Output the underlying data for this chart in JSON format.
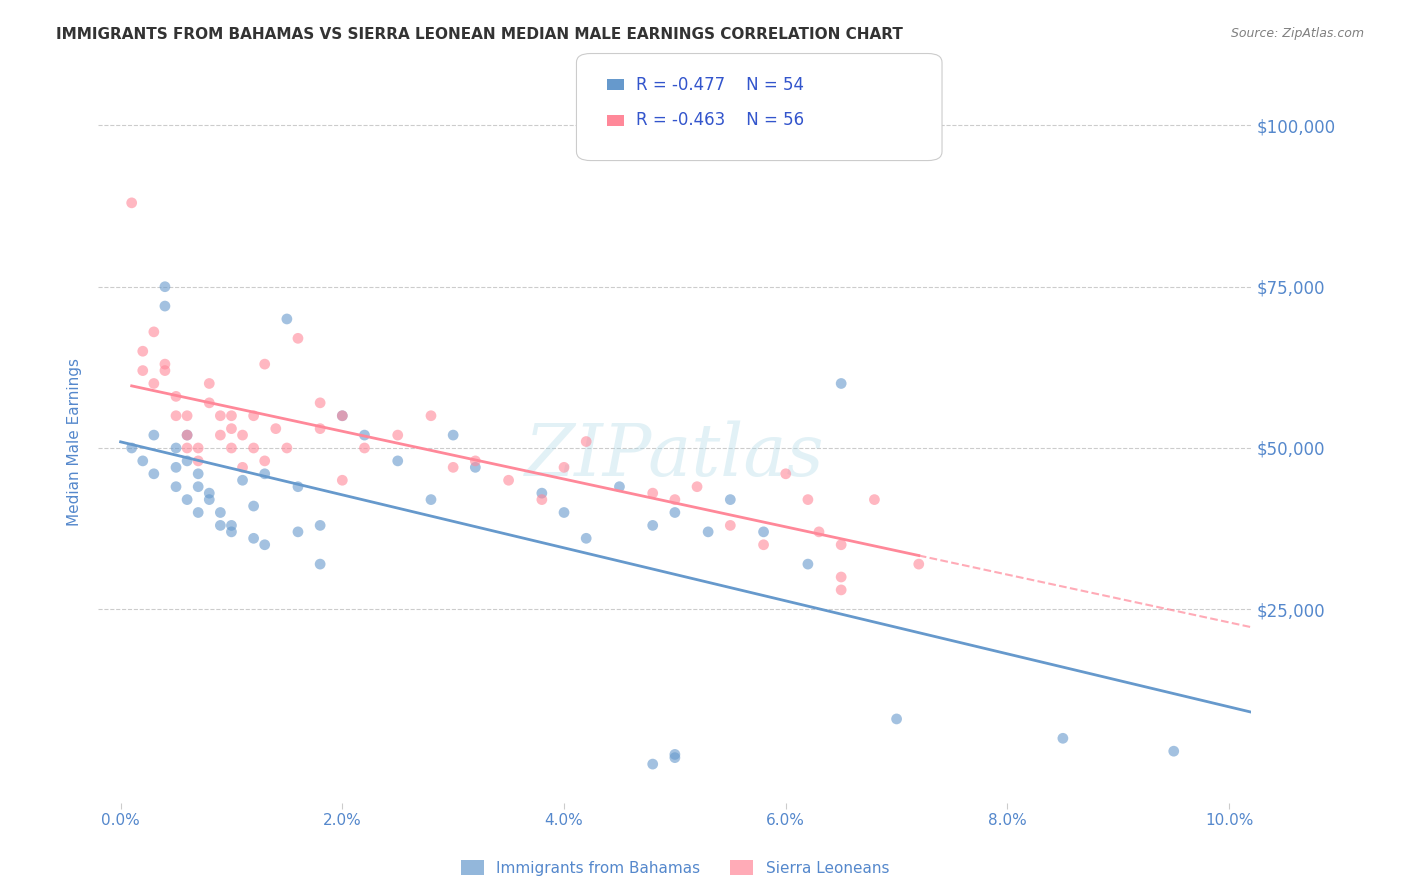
{
  "title": "IMMIGRANTS FROM BAHAMAS VS SIERRA LEONEAN MEDIAN MALE EARNINGS CORRELATION CHART",
  "source": "Source: ZipAtlas.com",
  "xlabel": "",
  "ylabel": "Median Male Earnings",
  "watermark": "ZIPatlas",
  "legend_labels": [
    "Immigrants from Bahamas",
    "Sierra Leoneans"
  ],
  "r_bahamas": -0.477,
  "n_bahamas": 54,
  "r_sierra": -0.463,
  "n_sierra": 56,
  "blue_color": "#6699CC",
  "pink_color": "#FF8899",
  "blue_light": "#AABBDD",
  "pink_light": "#FFAABB",
  "ytick_labels": [
    "$25,000",
    "$50,000",
    "$75,000",
    "$100,000"
  ],
  "ytick_values": [
    25000,
    50000,
    75000,
    100000
  ],
  "xlim": [
    -0.002,
    0.102
  ],
  "ylim": [
    -5000,
    107000
  ],
  "background": "#FFFFFF",
  "grid_color": "#CCCCCC",
  "title_color": "#333333",
  "axis_label_color": "#5588CC",
  "bahamas_x": [
    0.001,
    0.002,
    0.003,
    0.003,
    0.004,
    0.004,
    0.005,
    0.005,
    0.005,
    0.006,
    0.006,
    0.006,
    0.007,
    0.007,
    0.007,
    0.008,
    0.008,
    0.009,
    0.009,
    0.01,
    0.01,
    0.011,
    0.012,
    0.012,
    0.013,
    0.013,
    0.015,
    0.016,
    0.016,
    0.018,
    0.018,
    0.02,
    0.022,
    0.025,
    0.028,
    0.03,
    0.032,
    0.038,
    0.04,
    0.042,
    0.045,
    0.048,
    0.05,
    0.053,
    0.055,
    0.058,
    0.062,
    0.065,
    0.048,
    0.05,
    0.05,
    0.07,
    0.085,
    0.095
  ],
  "bahamas_y": [
    50000,
    48000,
    52000,
    46000,
    75000,
    72000,
    50000,
    47000,
    44000,
    48000,
    52000,
    42000,
    46000,
    44000,
    40000,
    43000,
    42000,
    38000,
    40000,
    38000,
    37000,
    45000,
    41000,
    36000,
    46000,
    35000,
    70000,
    37000,
    44000,
    38000,
    32000,
    55000,
    52000,
    48000,
    42000,
    52000,
    47000,
    43000,
    40000,
    36000,
    44000,
    38000,
    40000,
    37000,
    42000,
    37000,
    32000,
    60000,
    1000,
    2000,
    2500,
    8000,
    5000,
    3000
  ],
  "sierra_x": [
    0.001,
    0.002,
    0.002,
    0.003,
    0.003,
    0.004,
    0.004,
    0.005,
    0.005,
    0.006,
    0.006,
    0.006,
    0.007,
    0.007,
    0.008,
    0.008,
    0.009,
    0.009,
    0.01,
    0.01,
    0.01,
    0.011,
    0.011,
    0.012,
    0.012,
    0.013,
    0.013,
    0.014,
    0.015,
    0.016,
    0.018,
    0.018,
    0.02,
    0.02,
    0.022,
    0.025,
    0.028,
    0.03,
    0.032,
    0.035,
    0.038,
    0.04,
    0.042,
    0.048,
    0.05,
    0.052,
    0.055,
    0.06,
    0.062,
    0.065,
    0.058,
    0.063,
    0.065,
    0.072,
    0.065,
    0.068
  ],
  "sierra_y": [
    88000,
    65000,
    62000,
    60000,
    68000,
    63000,
    62000,
    58000,
    55000,
    55000,
    52000,
    50000,
    50000,
    48000,
    60000,
    57000,
    55000,
    52000,
    53000,
    50000,
    55000,
    47000,
    52000,
    50000,
    55000,
    63000,
    48000,
    53000,
    50000,
    67000,
    57000,
    53000,
    55000,
    45000,
    50000,
    52000,
    55000,
    47000,
    48000,
    45000,
    42000,
    47000,
    51000,
    43000,
    42000,
    44000,
    38000,
    46000,
    42000,
    30000,
    35000,
    37000,
    35000,
    32000,
    28000,
    42000
  ]
}
